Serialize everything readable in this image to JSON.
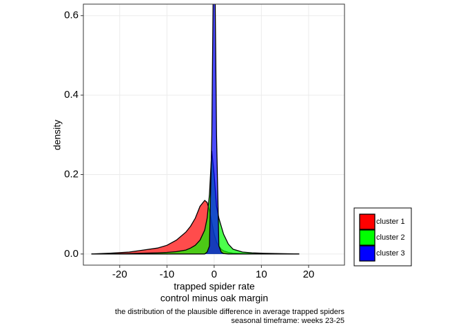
{
  "chart_data": {
    "type": "area",
    "x_label": [
      "trapped spider rate",
      "control minus oak margin"
    ],
    "y_label": "density",
    "caption": [
      "the distribution of the plausible difference in average trapped spiders",
      "seasonal timeframe: weeks 23-25"
    ],
    "x": [
      -26,
      -22,
      -18,
      -15,
      -12,
      -10,
      -8,
      -6,
      -5,
      -4,
      -3,
      -2,
      -1.5,
      -1,
      -0.5,
      0,
      0.5,
      1,
      1.5,
      2,
      3,
      4,
      6,
      8,
      10,
      14,
      18
    ],
    "series": [
      {
        "name": "cluster 1",
        "color": "#ff0000",
        "values": [
          0,
          0.002,
          0.005,
          0.01,
          0.015,
          0.022,
          0.035,
          0.055,
          0.07,
          0.09,
          0.12,
          0.135,
          0.13,
          0.11,
          0.08,
          0.05,
          0.03,
          0.02,
          0.012,
          0.008,
          0.004,
          0.002,
          0.001,
          0.001,
          0.001,
          0,
          0
        ]
      },
      {
        "name": "cluster 2",
        "color": "#00ff00",
        "values": [
          0,
          0,
          0.001,
          0.002,
          0.003,
          0.004,
          0.006,
          0.01,
          0.015,
          0.022,
          0.035,
          0.06,
          0.09,
          0.15,
          0.26,
          0.2,
          0.12,
          0.09,
          0.07,
          0.05,
          0.025,
          0.012,
          0.005,
          0.003,
          0.002,
          0.001,
          0
        ]
      },
      {
        "name": "cluster 3",
        "color": "#0000ff",
        "values": [
          0,
          0,
          0,
          0,
          0,
          0,
          0,
          0,
          0,
          0,
          0,
          0,
          0.005,
          0.02,
          0.3,
          0.9,
          0.3,
          0.02,
          0.005,
          0.001,
          0,
          0,
          0,
          0,
          0,
          0,
          0
        ]
      }
    ],
    "alpha": 0.7,
    "xlim": [
      -27.7,
      27.6
    ],
    "ylim": [
      -0.028,
      0.629
    ],
    "xticks": [
      -20,
      -10,
      0,
      10,
      20
    ],
    "yticks": [
      {
        "value": 0,
        "label": "0.0"
      },
      0.2,
      0.4,
      0.6
    ],
    "grid": true,
    "legend_position": "right"
  }
}
